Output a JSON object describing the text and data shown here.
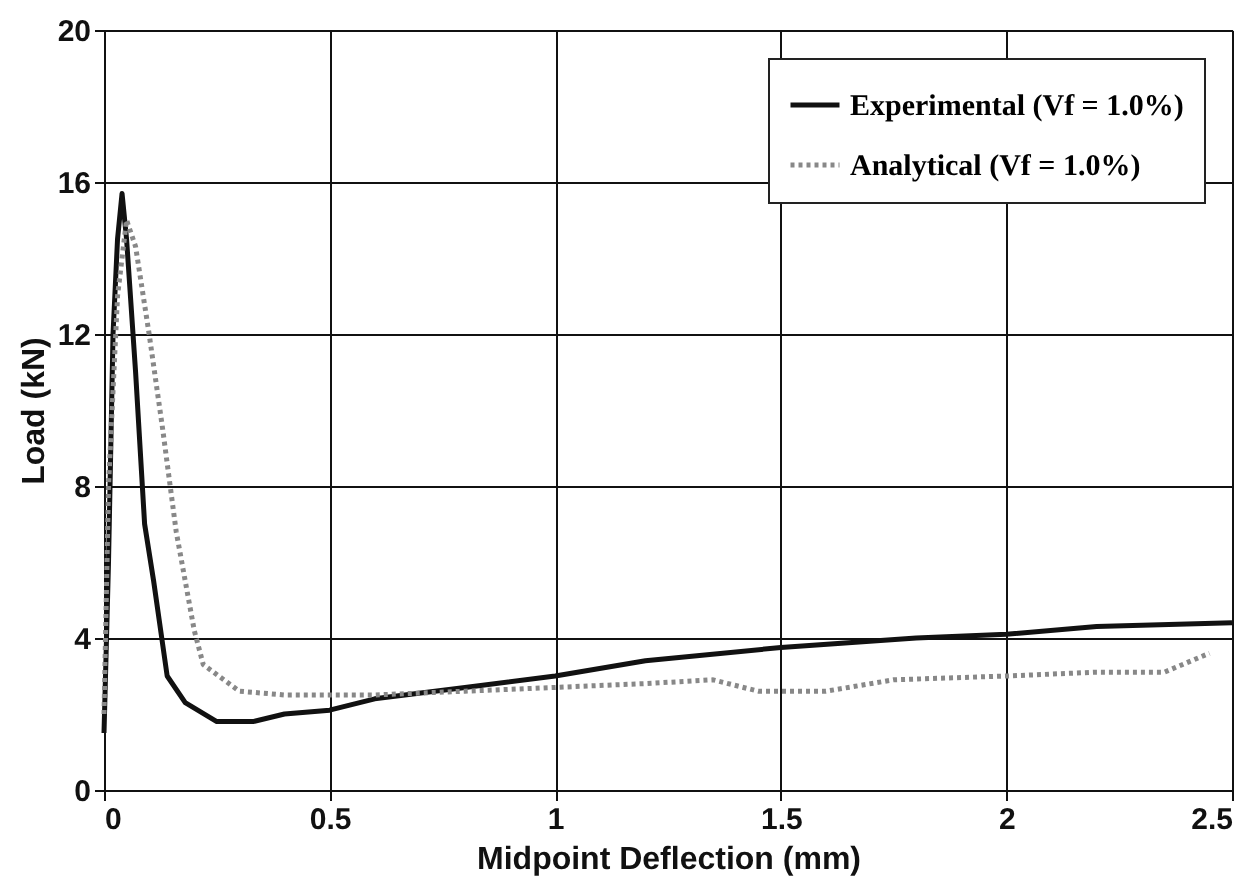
{
  "chart_data": {
    "type": "line",
    "xlabel": "Midpoint Deflection (mm)",
    "ylabel": "Load (kN)",
    "xlim": [
      0,
      2.5
    ],
    "xticks": [
      0,
      0.5,
      1,
      1.5,
      2,
      2.5
    ],
    "ylim": [
      0,
      20
    ],
    "yticks": [
      0,
      4,
      8,
      12,
      16,
      20
    ],
    "grid": true,
    "legend": "top right",
    "marker": "none",
    "series": [
      {
        "name": "Experimental (Vf = 1.0%)",
        "color": "#111111",
        "line_style": "solid",
        "x": [
          0,
          0.01,
          0.02,
          0.03,
          0.04,
          0.05,
          0.07,
          0.09,
          0.11,
          0.14,
          0.18,
          0.25,
          0.33,
          0.4,
          0.5,
          0.6,
          0.8,
          1.0,
          1.2,
          1.5,
          1.8,
          2.0,
          2.2,
          2.5
        ],
        "values": [
          1.5,
          6,
          12,
          14.5,
          15.7,
          14.5,
          11,
          7,
          5.5,
          3,
          2.3,
          1.8,
          1.8,
          2.0,
          2.1,
          2.4,
          2.7,
          3.0,
          3.4,
          3.75,
          4.0,
          4.1,
          4.3,
          4.4
        ]
      },
      {
        "name": "Analytical (Vf = 1.0%)",
        "color": "#888888",
        "line_style": "dotted",
        "x": [
          0,
          0.01,
          0.03,
          0.05,
          0.07,
          0.1,
          0.13,
          0.16,
          0.2,
          0.22,
          0.3,
          0.4,
          0.6,
          0.8,
          1.0,
          1.2,
          1.35,
          1.45,
          1.6,
          1.75,
          2.0,
          2.2,
          2.35,
          2.45
        ],
        "values": [
          2,
          8,
          13,
          15.0,
          14.3,
          12,
          9.5,
          6.8,
          4.2,
          3.3,
          2.6,
          2.5,
          2.5,
          2.6,
          2.7,
          2.8,
          2.9,
          2.6,
          2.6,
          2.9,
          3.0,
          3.1,
          3.1,
          3.6
        ]
      }
    ]
  }
}
